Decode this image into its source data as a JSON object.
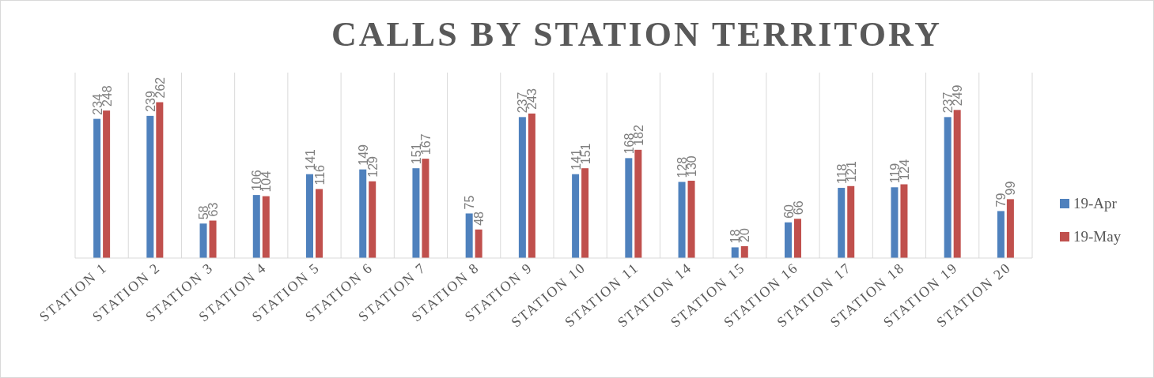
{
  "chart_data": {
    "type": "bar",
    "title": "CALLS BY STATION TERRITORY",
    "categories": [
      "STATION 1",
      "STATION 2",
      "STATION 3",
      "STATION 4",
      "STATION 5",
      "STATION 6",
      "STATION 7",
      "STATION 8",
      "STATION 9",
      "STATION 10",
      "STATION 11",
      "STATION 14",
      "STATION 15",
      "STATION 16",
      "STATION 17",
      "STATION 18",
      "STATION 19",
      "STATION 20"
    ],
    "series": [
      {
        "name": "19-Apr",
        "color": "#4f81bd",
        "values": [
          234,
          239,
          58,
          106,
          141,
          149,
          151,
          75,
          237,
          141,
          168,
          128,
          18,
          60,
          118,
          119,
          237,
          79
        ]
      },
      {
        "name": "19-May",
        "color": "#c0504d",
        "values": [
          248,
          262,
          63,
          104,
          116,
          129,
          167,
          48,
          243,
          151,
          182,
          130,
          20,
          66,
          121,
          124,
          249,
          99
        ]
      }
    ],
    "data_labels": true,
    "grid": "x",
    "legend": "right"
  }
}
